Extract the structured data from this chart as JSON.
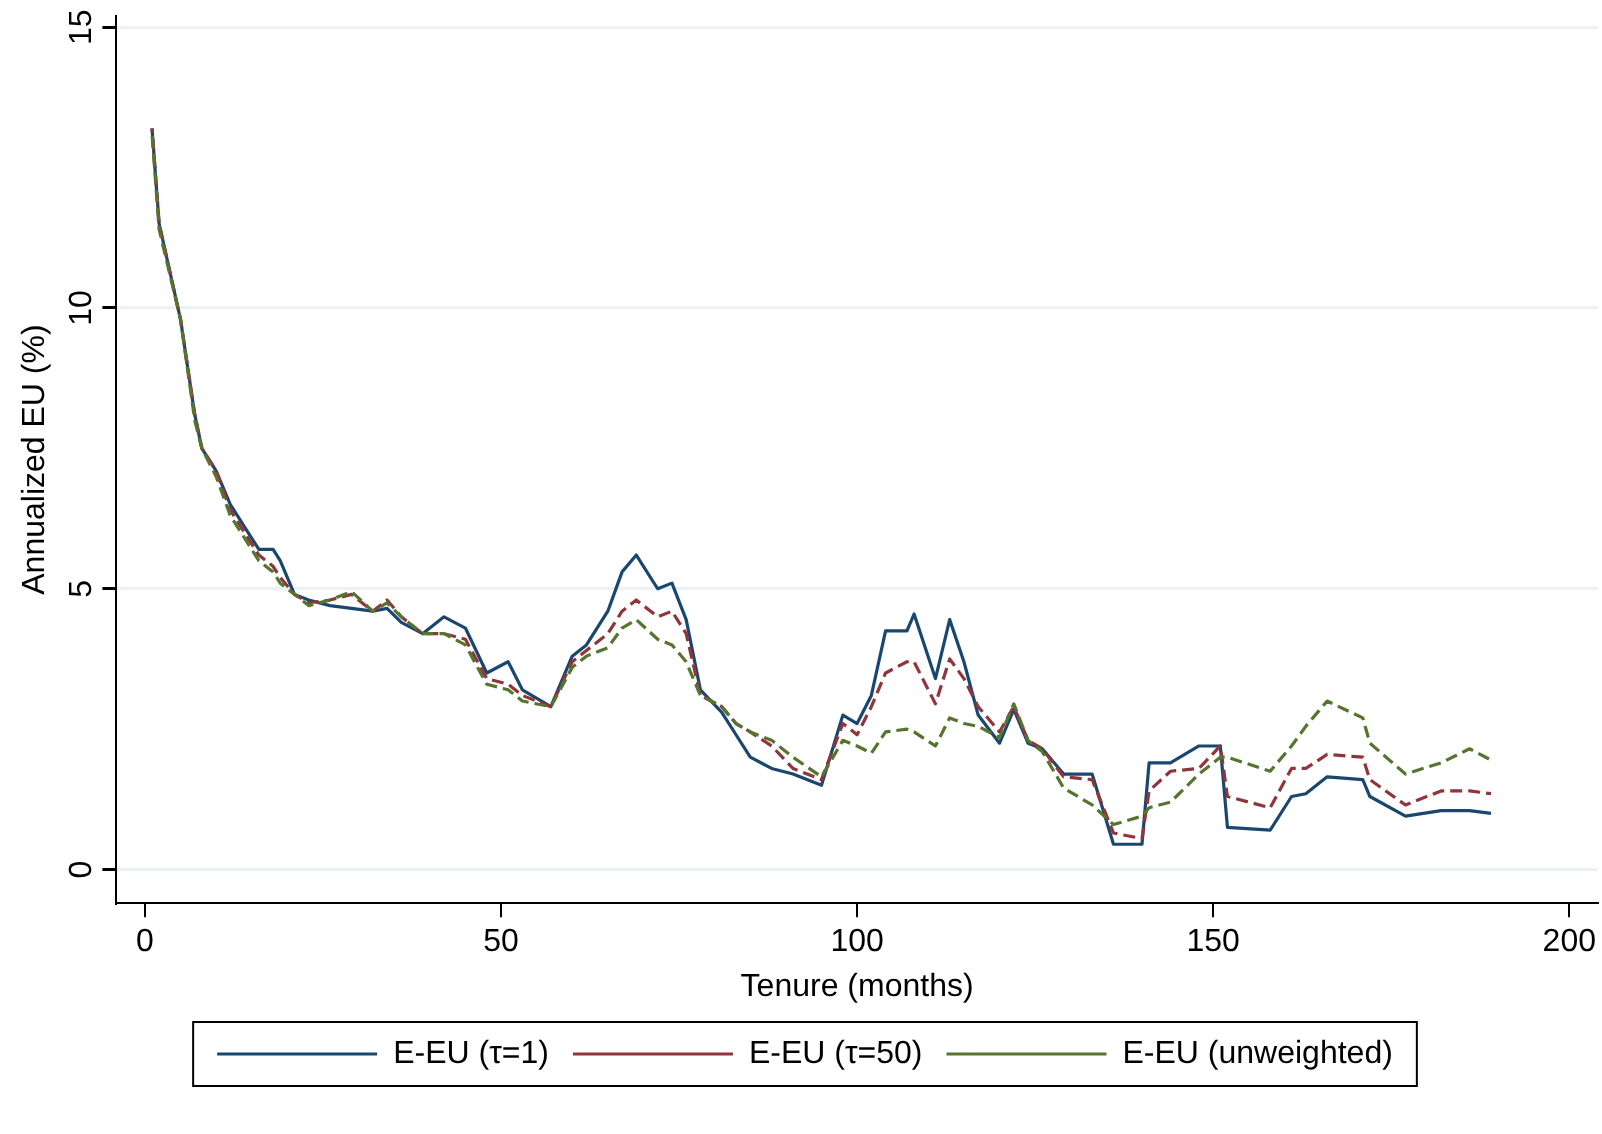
{
  "chart_data": {
    "type": "line",
    "xlabel": "Tenure (months)",
    "ylabel": "Annualized EU (%)",
    "x": [
      1,
      2,
      5,
      7,
      8,
      10,
      12,
      14,
      16,
      18,
      19,
      21,
      23,
      26,
      29,
      32,
      34,
      36,
      39,
      42,
      45,
      48,
      51,
      53,
      57,
      60,
      62,
      65,
      67,
      69,
      72,
      74,
      76,
      78,
      81,
      83,
      85,
      88,
      91,
      95,
      98,
      100,
      102,
      104,
      107,
      108,
      111,
      113,
      115,
      117,
      120,
      122,
      124,
      126,
      129,
      133,
      136,
      140,
      141,
      144,
      148,
      151,
      152,
      158,
      161,
      163,
      166,
      171,
      172,
      177,
      182,
      186,
      189
    ],
    "xlim": [
      -4,
      204
    ],
    "xticks": [
      0,
      50,
      100,
      150,
      200
    ],
    "ylim": [
      -0.6,
      15.2
    ],
    "yticks": [
      0,
      5,
      10,
      15
    ],
    "grid": "y",
    "legend": "bottom",
    "series": [
      {
        "name": "E-EU (τ=1)",
        "color": "#1a476f",
        "line_style": "solid",
        "values": [
          13.2,
          11.5,
          9.8,
          8.1,
          7.5,
          7.1,
          6.5,
          6.1,
          5.7,
          5.7,
          5.5,
          4.9,
          4.8,
          4.7,
          4.65,
          4.6,
          4.65,
          4.4,
          4.2,
          4.5,
          4.3,
          3.5,
          3.7,
          3.2,
          2.9,
          3.8,
          4.0,
          4.6,
          5.3,
          5.6,
          5.0,
          5.1,
          4.45,
          3.2,
          2.8,
          2.4,
          2.0,
          1.8,
          1.7,
          1.5,
          2.75,
          2.6,
          3.1,
          4.25,
          4.25,
          4.55,
          3.4,
          4.45,
          3.7,
          2.75,
          2.25,
          2.85,
          2.25,
          2.15,
          1.7,
          1.7,
          0.45,
          0.45,
          1.9,
          1.9,
          2.2,
          2.2,
          0.75,
          0.7,
          1.3,
          1.35,
          1.65,
          1.6,
          1.3,
          0.95,
          1.05,
          1.05,
          1.0
        ]
      },
      {
        "name": "E-EU (τ=50)",
        "color": "#90353b",
        "line_style": "dashed",
        "values": [
          13.2,
          11.5,
          9.8,
          8.1,
          7.5,
          7.1,
          6.4,
          6.0,
          5.6,
          5.4,
          5.2,
          4.9,
          4.75,
          4.8,
          4.9,
          4.6,
          4.8,
          4.5,
          4.2,
          4.2,
          4.1,
          3.4,
          3.3,
          3.1,
          2.9,
          3.7,
          3.9,
          4.2,
          4.6,
          4.8,
          4.5,
          4.6,
          4.2,
          3.1,
          2.9,
          2.6,
          2.45,
          2.2,
          1.8,
          1.6,
          2.6,
          2.4,
          2.9,
          3.5,
          3.7,
          3.7,
          2.95,
          3.75,
          3.4,
          2.9,
          2.45,
          2.9,
          2.3,
          2.15,
          1.65,
          1.6,
          0.65,
          0.55,
          1.4,
          1.75,
          1.8,
          2.2,
          1.3,
          1.1,
          1.8,
          1.8,
          2.05,
          2.0,
          1.6,
          1.15,
          1.4,
          1.4,
          1.35
        ]
      },
      {
        "name": "E-EU (unweighted)",
        "color": "#55752f",
        "line_style": "dashed",
        "values": [
          13.1,
          11.4,
          9.8,
          8.0,
          7.5,
          7.0,
          6.3,
          5.9,
          5.5,
          5.3,
          5.1,
          4.9,
          4.7,
          4.8,
          4.95,
          4.6,
          4.75,
          4.5,
          4.2,
          4.2,
          4.0,
          3.3,
          3.2,
          3.0,
          2.9,
          3.6,
          3.8,
          3.95,
          4.3,
          4.45,
          4.1,
          4.0,
          3.7,
          3.1,
          2.9,
          2.6,
          2.45,
          2.3,
          2.0,
          1.65,
          2.3,
          2.2,
          2.07,
          2.45,
          2.5,
          2.45,
          2.2,
          2.7,
          2.6,
          2.55,
          2.35,
          2.95,
          2.3,
          2.1,
          1.45,
          1.15,
          0.8,
          0.95,
          1.1,
          1.2,
          1.7,
          2.0,
          2.0,
          1.75,
          2.2,
          2.55,
          3.0,
          2.7,
          2.25,
          1.7,
          1.9,
          2.15,
          1.95
        ]
      }
    ]
  }
}
